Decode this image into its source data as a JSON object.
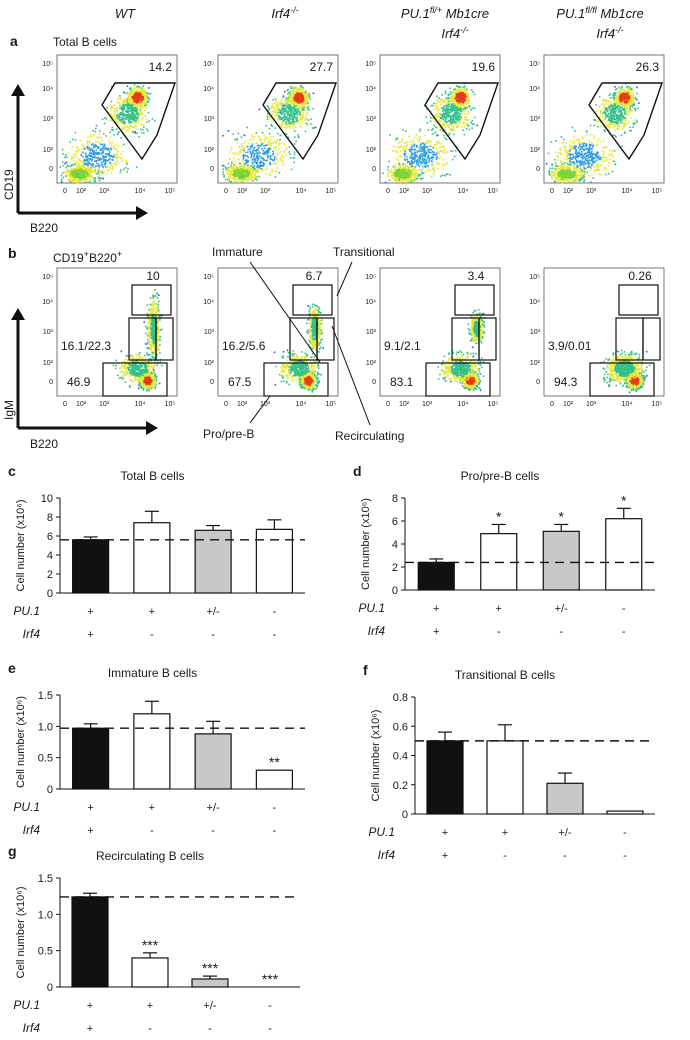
{
  "columns": [
    {
      "main": "WT",
      "sup": "",
      "line2": "",
      "line2sup": ""
    },
    {
      "main": "Irf4",
      "sup": "-/-",
      "line2": "",
      "line2sup": ""
    },
    {
      "main": "PU.1",
      "sup": "fl/+",
      "tail": " Mb1cre",
      "line2": "Irf4",
      "line2sup": "-/-"
    },
    {
      "main": "PU.1",
      "sup": "fl/fl",
      "tail": " Mb1cre",
      "line2": "Irf4",
      "line2sup": "-/-"
    }
  ],
  "panel_a": {
    "letter": "a",
    "title": "Total B cells",
    "y_axis": "CD19",
    "x_axis": "B220",
    "gate_values": [
      "14.2",
      "27.7",
      "19.6",
      "26.3"
    ],
    "y_ticks": [
      "10⁵",
      "10⁴",
      "10³",
      "10²",
      "0"
    ],
    "x_ticks": [
      "0",
      "10²",
      "10³",
      "10⁴",
      "10⁵"
    ]
  },
  "panel_b": {
    "letter": "b",
    "title_main": "CD19",
    "title_sup1": "+",
    "title_mid": "B220",
    "title_sup2": "+",
    "y_axis": "IgM",
    "x_axis": "B220",
    "annotations": {
      "immature": "Immature",
      "transitional": "Transitional",
      "pro_pre": "Pro/pre-B",
      "recirculating": "Recirculating"
    },
    "plots": [
      {
        "top": "10",
        "mid": "16.1/22.3",
        "low": "46.9"
      },
      {
        "top": "6.7",
        "mid": "16.2/5.6",
        "low": "67.5"
      },
      {
        "top": "3.4",
        "mid": "9.1/2.1",
        "low": "83.1"
      },
      {
        "top": "0.26",
        "mid": "3.9/0.01",
        "low": "94.3"
      }
    ]
  },
  "genotype": {
    "pu1_label": "PU.1",
    "irf4_label": "Irf4",
    "pu1": [
      "+",
      "+",
      "+/-",
      "-"
    ],
    "irf4": [
      "+",
      "-",
      "-",
      "-"
    ]
  },
  "chart_data": [
    {
      "type": "bar",
      "letter": "c",
      "title": "Total B cells",
      "ylabel": "Cell number (x10⁶)",
      "ylim": [
        0,
        10
      ],
      "yticks": [
        0,
        2,
        4,
        6,
        8,
        10
      ],
      "values": [
        5.6,
        7.4,
        6.6,
        6.7
      ],
      "errors": [
        0.3,
        1.2,
        0.5,
        1.0
      ],
      "significance": [
        "",
        "",
        "",
        ""
      ],
      "baseline": 5.6,
      "colors": [
        "#111111",
        "#ffffff",
        "#c8c8c8",
        "#ffffff"
      ]
    },
    {
      "type": "bar",
      "letter": "d",
      "title": "Pro/pre-B cells",
      "ylabel": "Cell number (x10⁶)",
      "ylim": [
        0,
        8
      ],
      "yticks": [
        0,
        2,
        4,
        6,
        8
      ],
      "values": [
        2.4,
        4.9,
        5.1,
        6.2
      ],
      "errors": [
        0.3,
        0.8,
        0.6,
        0.9
      ],
      "significance": [
        "",
        "*",
        "*",
        "*"
      ],
      "baseline": 2.4,
      "colors": [
        "#111111",
        "#ffffff",
        "#c8c8c8",
        "#ffffff"
      ]
    },
    {
      "type": "bar",
      "letter": "e",
      "title": "Immature B cells",
      "ylabel": "Cell number (x10⁶)",
      "ylim": [
        0,
        1.5
      ],
      "yticks": [
        0,
        0.5,
        1.0,
        1.5
      ],
      "values": [
        0.97,
        1.2,
        0.88,
        0.3
      ],
      "errors": [
        0.07,
        0.2,
        0.2,
        0.0
      ],
      "significance": [
        "",
        "",
        "",
        "**"
      ],
      "baseline": 0.97,
      "colors": [
        "#111111",
        "#ffffff",
        "#c8c8c8",
        "#ffffff"
      ]
    },
    {
      "type": "bar",
      "letter": "f",
      "title": "Transitional B cells",
      "ylabel": "Cell number (x10⁶)",
      "ylim": [
        0,
        0.8
      ],
      "yticks": [
        0,
        0.2,
        0.4,
        0.6,
        0.8
      ],
      "values": [
        0.5,
        0.5,
        0.21,
        0.02
      ],
      "errors": [
        0.06,
        0.11,
        0.07,
        0.0
      ],
      "significance": [
        "",
        "",
        "",
        ""
      ],
      "baseline": 0.5,
      "colors": [
        "#111111",
        "#ffffff",
        "#c8c8c8",
        "#ffffff"
      ]
    },
    {
      "type": "bar",
      "letter": "g",
      "title": "Recirculating B cells",
      "ylabel": "Cell number (x10⁶)",
      "ylim": [
        0,
        1.5
      ],
      "yticks": [
        0,
        0.5,
        1.0,
        1.5
      ],
      "values": [
        1.24,
        0.4,
        0.11,
        0.0
      ],
      "errors": [
        0.05,
        0.07,
        0.04,
        0.0
      ],
      "significance": [
        "",
        "***",
        "***",
        "***"
      ],
      "baseline": 1.24,
      "colors": [
        "#111111",
        "#ffffff",
        "#c8c8c8",
        "#ffffff"
      ]
    }
  ]
}
